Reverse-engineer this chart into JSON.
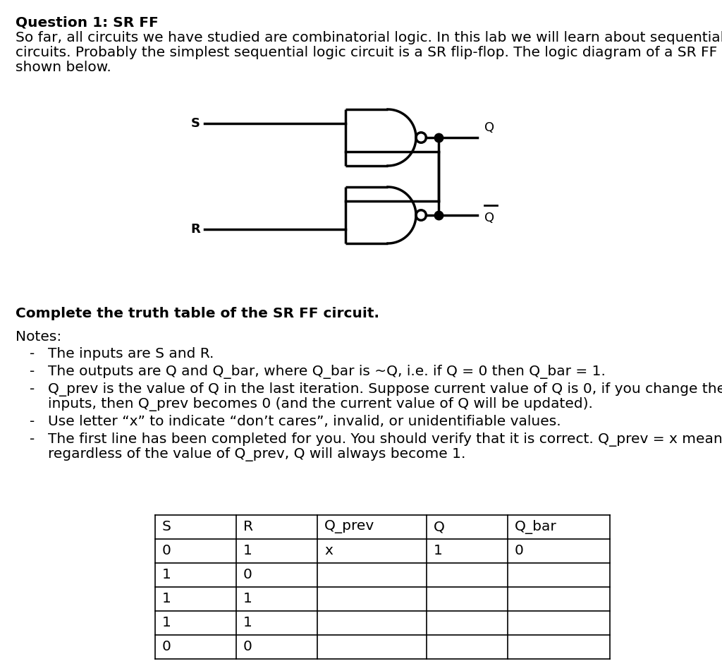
{
  "title": "Question 1: SR FF",
  "intro_line1": "So far, all circuits we have studied are combinatorial logic. In this lab we will learn about sequential logic",
  "intro_line2": "circuits. Probably the simplest sequential logic circuit is a SR flip-flop. The logic diagram of a SR FF is",
  "intro_line3": "shown below.",
  "bold_instruction": "Complete the truth table of the SR FF circuit.",
  "notes_header": "Notes:",
  "notes": [
    [
      "The inputs are S and R."
    ],
    [
      "The outputs are Q and Q_bar, where Q_bar is ~Q, i.e. if Q = 0 then Q_bar = 1."
    ],
    [
      "Q_prev is the value of Q in the last iteration. Suppose current value of Q is 0, if you change the",
      "inputs, then Q_prev becomes 0 (and the current value of Q will be updated)."
    ],
    [
      "Use letter “x” to indicate “don’t cares”, invalid, or unidentifiable values."
    ],
    [
      "The first line has been completed for you. You should verify that it is correct. Q_prev = x means",
      "regardless of the value of Q_prev, Q will always become 1."
    ]
  ],
  "table_headers": [
    "S",
    "R",
    "Q_prev",
    "Q",
    "Q_bar"
  ],
  "table_data": [
    [
      "0",
      "1",
      "x",
      "1",
      "0"
    ],
    [
      "1",
      "0",
      "",
      "",
      ""
    ],
    [
      "1",
      "1",
      "",
      "",
      ""
    ],
    [
      "1",
      "1",
      "",
      "",
      ""
    ],
    [
      "0",
      "0",
      "",
      "",
      ""
    ]
  ],
  "bg_color": "#ffffff",
  "text_color": "#000000"
}
